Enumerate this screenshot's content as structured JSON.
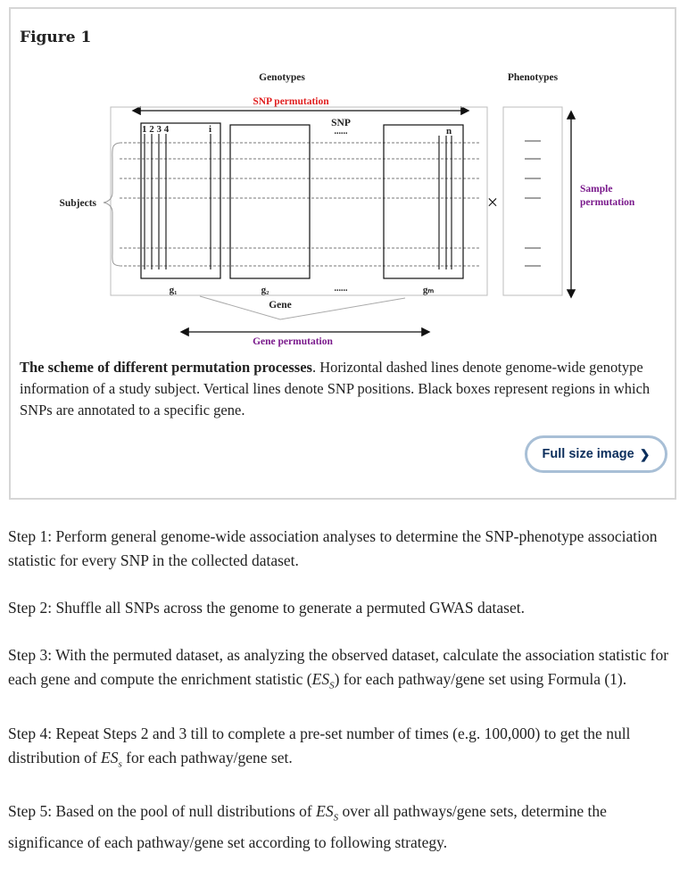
{
  "figure": {
    "title": "Figure 1",
    "diagram": {
      "genotypes": "Genotypes",
      "phenotypes": "Phenotypes",
      "snp_permutation": "SNP permutation",
      "snp": "SNP",
      "dots": "......",
      "col_numbers": "1 2 3 4",
      "col_i": "i",
      "col_n": "n",
      "subjects": "Subjects",
      "sample_perm_1": "Sample",
      "sample_perm_2": "permutation",
      "g1": "g₁",
      "g2": "g₂",
      "gm": "gₘ",
      "gene_dots": "......",
      "gene": "Gene",
      "gene_permutation": "Gene permutation",
      "times": "×"
    },
    "caption_bold": "The scheme of different permutation processes",
    "caption_rest": ". Horizontal dashed lines denote genome-wide genotype information of a study subject. Vertical lines denote SNP positions. Black boxes represent regions in which SNPs are annotated to a specific gene.",
    "full_size_button": "Full size image"
  },
  "colors": {
    "red_label": "#e02020",
    "purple_label": "#7a1a8c",
    "button_border": "#a8bfd6",
    "button_text": "#0b2e5c"
  },
  "steps": {
    "s1": "Step 1: Perform general genome-wide association analyses to determine the SNP-phenotype association statistic for every SNP in the collected dataset.",
    "s2": "Step 2: Shuffle all SNPs across the genome to generate a permuted GWAS dataset.",
    "s3a": "Step 3: With the permuted dataset, as analyzing the observed dataset, calculate the association statistic for each gene and compute the enrichment statistic (",
    "s3b": ") for each pathway/gene set using Formula (1).",
    "s4a": "Step 4: Repeat Steps 2 and 3 till to complete a pre-set number of times (e.g. 100,000) to get the null distribution of ",
    "s4b": " for each pathway/gene set.",
    "s5a": "Step 5: Based on the pool of null distributions of ",
    "s5b": " over all pathways/gene sets, determine the significance of each pathway/gene set according to following strategy.",
    "es_main": "ES",
    "es_sub_upper": "S",
    "es_sub_lower": "s"
  }
}
